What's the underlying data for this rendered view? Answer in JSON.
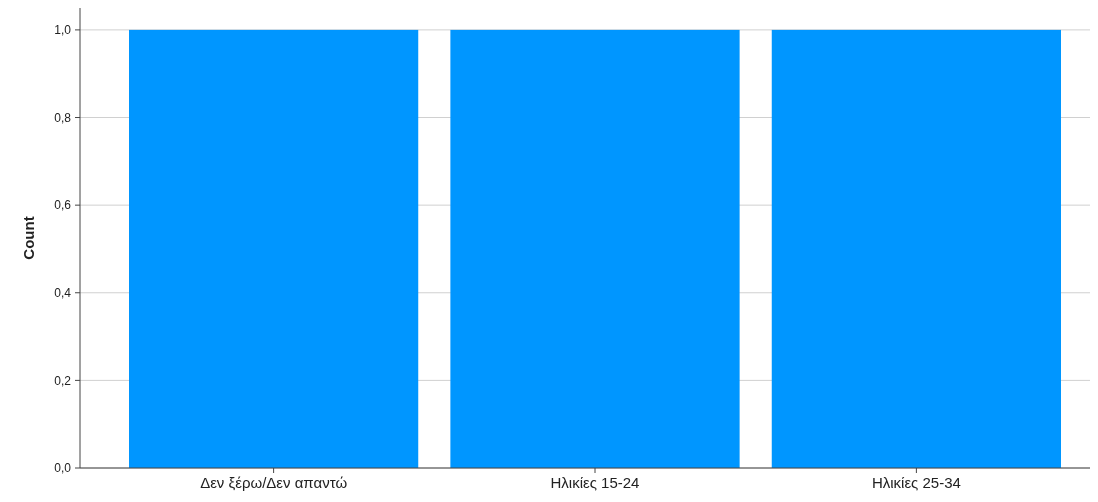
{
  "chart_data": {
    "type": "bar",
    "ylabel": "Count",
    "categories": [
      "Δεν ξέρω/Δεν απαντώ",
      "Ηλικίες 15-24",
      "Ηλικίες 25-34"
    ],
    "values": [
      1,
      1,
      1
    ],
    "color": "#0096ff",
    "ylim": [
      0,
      1.05
    ],
    "yticks": [
      {
        "value": 0,
        "label": "0,0"
      },
      {
        "value": 0.2,
        "label": "0,2"
      },
      {
        "value": 0.4,
        "label": "0,4"
      },
      {
        "value": 0.6,
        "label": "0,6"
      },
      {
        "value": 0.8,
        "label": "0,8"
      },
      {
        "value": 1,
        "label": "1,0"
      }
    ],
    "grid": "y"
  }
}
